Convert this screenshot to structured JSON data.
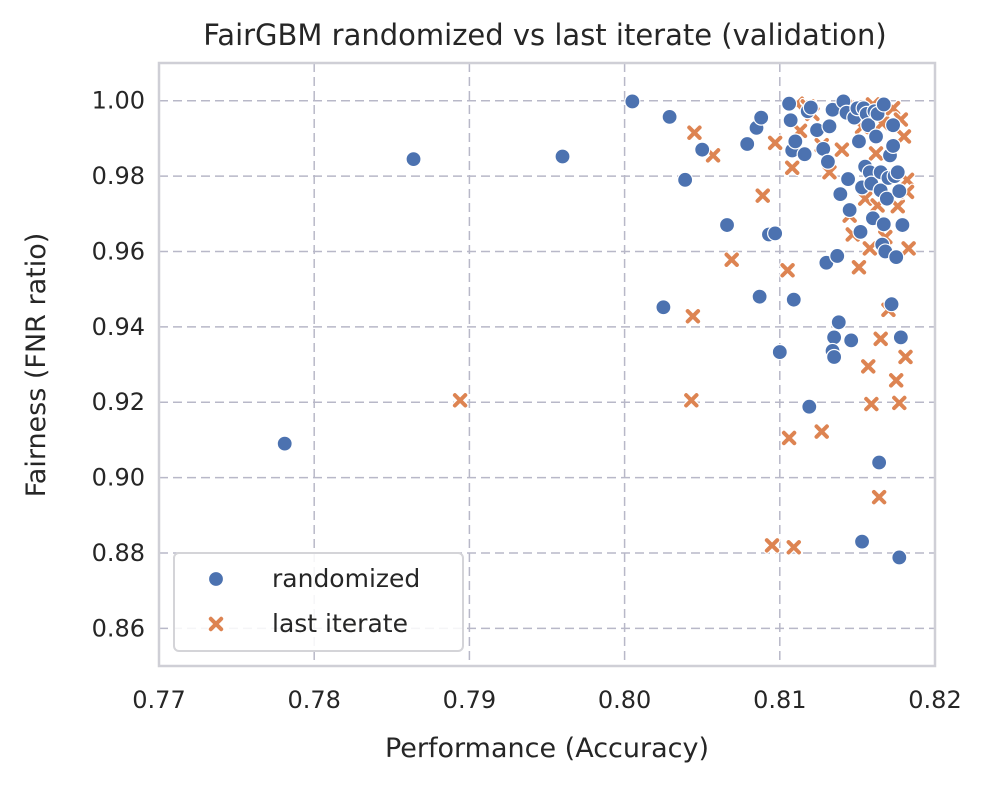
{
  "chart_data": {
    "type": "scatter",
    "title": "FairGBM randomized vs last iterate (validation)",
    "xlabel": "Performance (Accuracy)",
    "ylabel": "Fairness (FNR ratio)",
    "xlim": [
      0.77,
      0.82
    ],
    "ylim": [
      0.85,
      1.01
    ],
    "xticks": [
      0.77,
      0.78,
      0.79,
      0.8,
      0.81,
      0.82
    ],
    "xtick_labels": [
      "0.77",
      "0.78",
      "0.79",
      "0.80",
      "0.81",
      "0.82"
    ],
    "yticks": [
      0.86,
      0.88,
      0.9,
      0.92,
      0.94,
      0.96,
      0.98,
      1.0
    ],
    "ytick_labels": [
      "0.86",
      "0.88",
      "0.90",
      "0.92",
      "0.94",
      "0.96",
      "0.98",
      "1.00"
    ],
    "grid": true,
    "legend_position": "bottom-left",
    "series": [
      {
        "name": "randomized",
        "marker": "circle",
        "color": "#4c72b0",
        "points": [
          [
            0.7781,
            0.909
          ],
          [
            0.7864,
            0.9845
          ],
          [
            0.796,
            0.9852
          ],
          [
            0.8005,
            0.9998
          ],
          [
            0.8029,
            0.9957
          ],
          [
            0.8025,
            0.9452
          ],
          [
            0.8039,
            0.979
          ],
          [
            0.805,
            0.987
          ],
          [
            0.8066,
            0.967
          ],
          [
            0.8079,
            0.9885
          ],
          [
            0.8085,
            0.9928
          ],
          [
            0.8088,
            0.9955
          ],
          [
            0.8087,
            0.948
          ],
          [
            0.8093,
            0.9645
          ],
          [
            0.8097,
            0.9648
          ],
          [
            0.81,
            0.9333
          ],
          [
            0.8106,
            0.9992
          ],
          [
            0.8107,
            0.9948
          ],
          [
            0.8108,
            0.9868
          ],
          [
            0.811,
            0.9892
          ],
          [
            0.8109,
            0.9472
          ],
          [
            0.8116,
            0.9858
          ],
          [
            0.8118,
            0.9972
          ],
          [
            0.812,
            0.9982
          ],
          [
            0.8119,
            0.9188
          ],
          [
            0.8124,
            0.9922
          ],
          [
            0.8128,
            0.9872
          ],
          [
            0.813,
            0.957
          ],
          [
            0.8131,
            0.9838
          ],
          [
            0.8132,
            0.9932
          ],
          [
            0.8134,
            0.9976
          ],
          [
            0.8135,
            0.9372
          ],
          [
            0.8134,
            0.9336
          ],
          [
            0.8135,
            0.932
          ],
          [
            0.8137,
            0.9588
          ],
          [
            0.8138,
            0.9412
          ],
          [
            0.8139,
            0.9752
          ],
          [
            0.8141,
            0.9998
          ],
          [
            0.8143,
            0.9968
          ],
          [
            0.8144,
            0.9792
          ],
          [
            0.8145,
            0.971
          ],
          [
            0.8146,
            0.9364
          ],
          [
            0.8148,
            0.9955
          ],
          [
            0.815,
            0.998
          ],
          [
            0.8151,
            0.9892
          ],
          [
            0.8152,
            0.9652
          ],
          [
            0.8153,
            0.977
          ],
          [
            0.8154,
            0.998
          ],
          [
            0.8155,
            0.9825
          ],
          [
            0.8156,
            0.9965
          ],
          [
            0.8157,
            0.9935
          ],
          [
            0.8158,
            0.981
          ],
          [
            0.8159,
            0.978
          ],
          [
            0.816,
            0.9688
          ],
          [
            0.8161,
            0.9972
          ],
          [
            0.8162,
            0.9905
          ],
          [
            0.8163,
            0.9965
          ],
          [
            0.8164,
            0.904
          ],
          [
            0.8165,
            0.981
          ],
          [
            0.8165,
            0.9762
          ],
          [
            0.8166,
            0.9618
          ],
          [
            0.8167,
            0.999
          ],
          [
            0.8167,
            0.9672
          ],
          [
            0.8168,
            0.96
          ],
          [
            0.8169,
            0.974
          ],
          [
            0.817,
            0.9795
          ],
          [
            0.8171,
            0.9855
          ],
          [
            0.8172,
            0.946
          ],
          [
            0.8173,
            0.9935
          ],
          [
            0.8173,
            0.988
          ],
          [
            0.8174,
            0.98
          ],
          [
            0.8175,
            0.9585
          ],
          [
            0.8176,
            0.981
          ],
          [
            0.8177,
            0.976
          ],
          [
            0.8177,
            0.8788
          ],
          [
            0.8178,
            0.9372
          ],
          [
            0.8179,
            0.967
          ],
          [
            0.8153,
            0.883
          ]
        ]
      },
      {
        "name": "last iterate",
        "marker": "x",
        "color": "#dd8452",
        "points": [
          [
            0.7894,
            0.9205
          ],
          [
            0.8043,
            0.9205
          ],
          [
            0.8044,
            0.9428
          ],
          [
            0.8045,
            0.9915
          ],
          [
            0.8057,
            0.9855
          ],
          [
            0.8069,
            0.9578
          ],
          [
            0.8089,
            0.9748
          ],
          [
            0.8095,
            0.882
          ],
          [
            0.8097,
            0.9888
          ],
          [
            0.8105,
            0.955
          ],
          [
            0.8106,
            0.9105
          ],
          [
            0.8108,
            0.9822
          ],
          [
            0.8109,
            0.8815
          ],
          [
            0.8111,
            0.9992
          ],
          [
            0.8113,
            0.992
          ],
          [
            0.8118,
            0.9985
          ],
          [
            0.8121,
            0.9965
          ],
          [
            0.8127,
            0.9122
          ],
          [
            0.8127,
            0.9882
          ],
          [
            0.8132,
            0.981
          ],
          [
            0.814,
            0.987
          ],
          [
            0.8142,
            0.9985
          ],
          [
            0.8145,
            0.9695
          ],
          [
            0.8147,
            0.9645
          ],
          [
            0.815,
            0.9955
          ],
          [
            0.8151,
            0.9558
          ],
          [
            0.8153,
            0.993
          ],
          [
            0.8155,
            0.974
          ],
          [
            0.8157,
            0.9295
          ],
          [
            0.8158,
            0.9608
          ],
          [
            0.8159,
            0.9195
          ],
          [
            0.816,
            0.999
          ],
          [
            0.8162,
            0.986
          ],
          [
            0.8163,
            0.9722
          ],
          [
            0.8164,
            0.8948
          ],
          [
            0.8165,
            0.9368
          ],
          [
            0.8166,
            0.994
          ],
          [
            0.8168,
            0.9638
          ],
          [
            0.817,
            0.9445
          ],
          [
            0.8171,
            0.9805
          ],
          [
            0.8173,
            0.998
          ],
          [
            0.8175,
            0.9258
          ],
          [
            0.8176,
            0.972
          ],
          [
            0.8177,
            0.9198
          ],
          [
            0.8178,
            0.995
          ],
          [
            0.818,
            0.9905
          ],
          [
            0.8181,
            0.932
          ],
          [
            0.8182,
            0.979
          ],
          [
            0.8182,
            0.9758
          ],
          [
            0.8183,
            0.9608
          ]
        ]
      }
    ]
  }
}
